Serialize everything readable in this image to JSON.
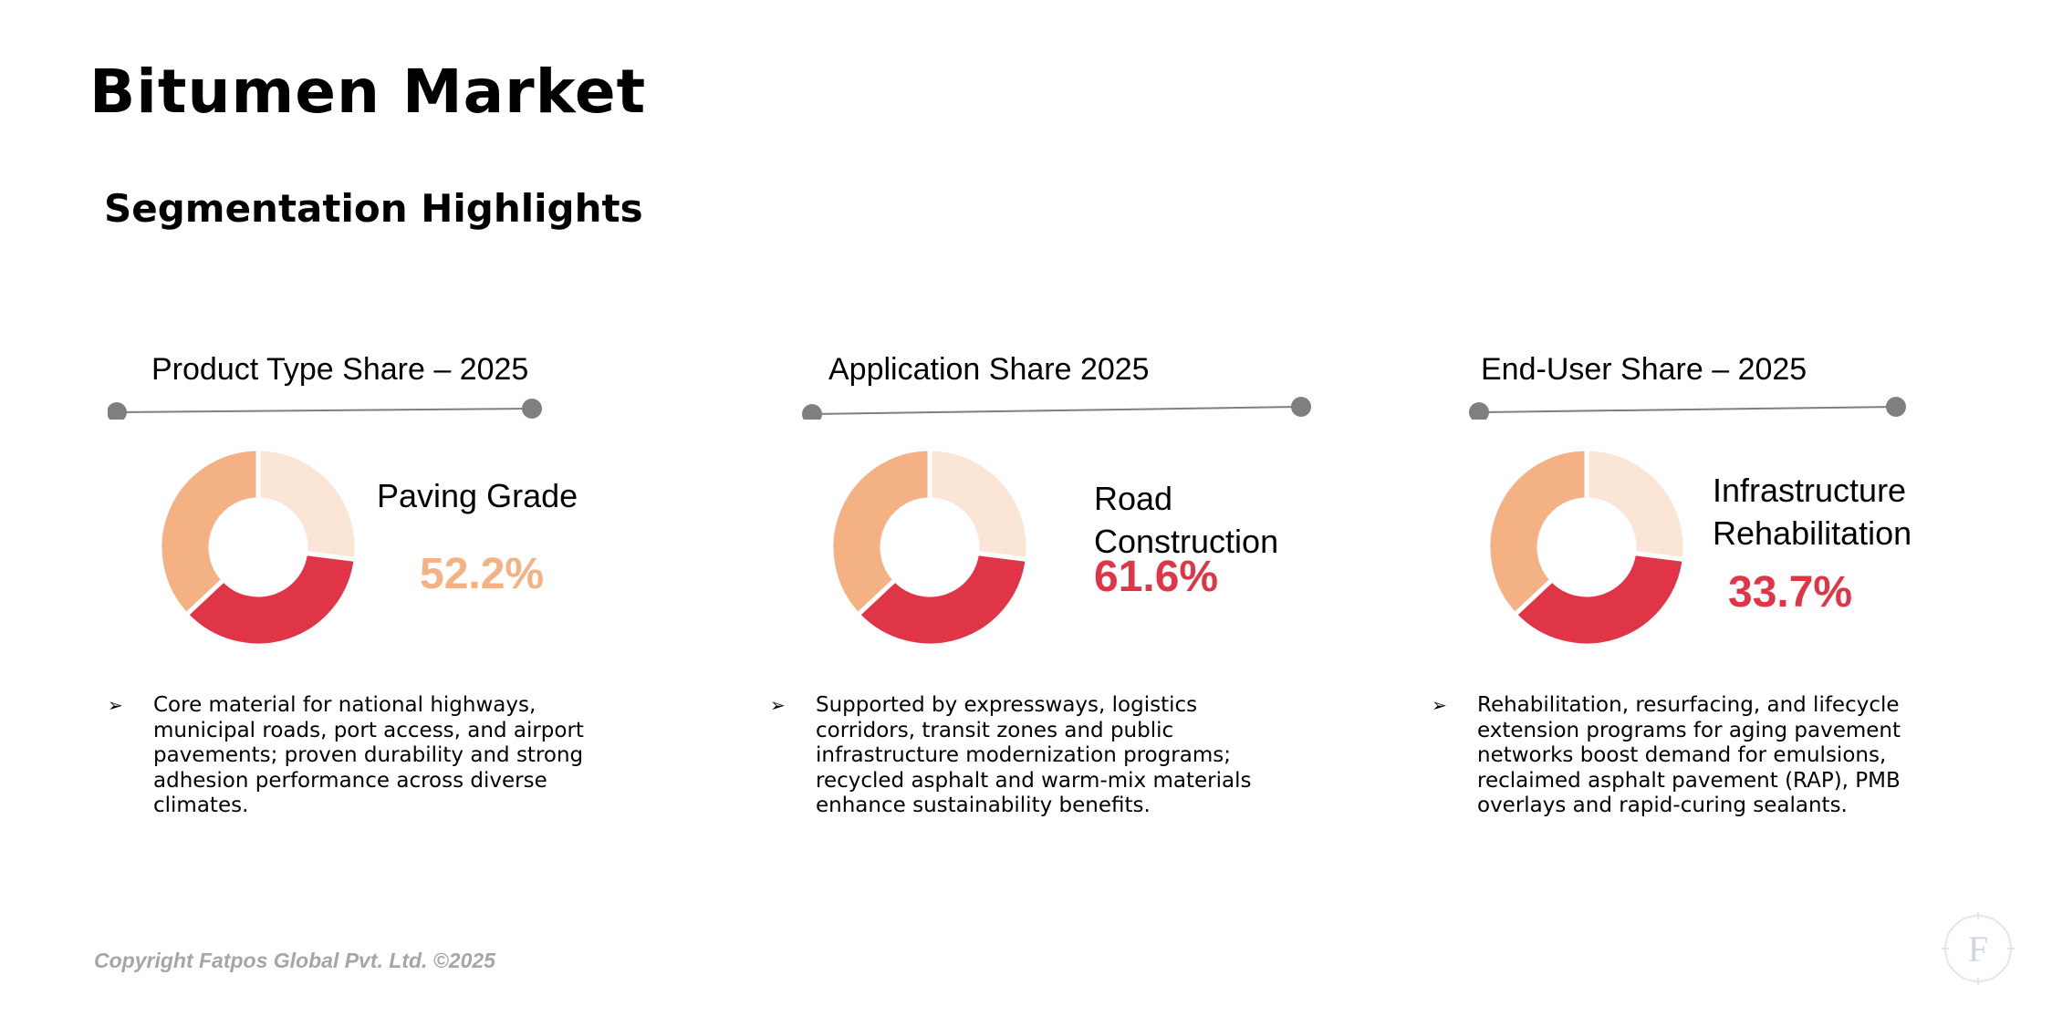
{
  "header": {
    "title": "Bitumen Market",
    "subtitle": "Segmentation Highlights"
  },
  "colors": {
    "highlight_light": "#f4b183",
    "highlight_red": "#e03546",
    "slice_pale": "#fbe5d6",
    "connector": "#7f7f7f",
    "footer_gray": "#a6a6a6"
  },
  "chart_data": [
    {
      "type": "pie",
      "variant": "donut",
      "title": "Product Type Share – 2025",
      "highlight_label": "Paving Grade",
      "highlight_value": "52.2%",
      "slices": [
        {
          "color": "#fbe5d6",
          "value": 27
        },
        {
          "color": "#e03546",
          "value": 36
        },
        {
          "color": "#f4b183",
          "value": 37
        }
      ],
      "bullet": "Core material for national highways, municipal roads, port access, and airport pavements; proven durability and strong adhesion performance across diverse climates."
    },
    {
      "type": "pie",
      "variant": "donut",
      "title": "Application Share 2025",
      "highlight_label": "Road Construction",
      "highlight_value": "61.6%",
      "slices": [
        {
          "color": "#fbe5d6",
          "value": 27
        },
        {
          "color": "#e03546",
          "value": 36
        },
        {
          "color": "#f4b183",
          "value": 37
        }
      ],
      "bullet": "Supported by expressways, logistics corridors, transit zones and public infrastructure modernization programs; recycled asphalt and warm-mix materials enhance sustainability benefits."
    },
    {
      "type": "pie",
      "variant": "donut",
      "title": "End-User Share – 2025",
      "highlight_label": "Infrastructure\nRehabilitation",
      "highlight_value": "33.7%",
      "slices": [
        {
          "color": "#fbe5d6",
          "value": 27
        },
        {
          "color": "#e03546",
          "value": 36
        },
        {
          "color": "#f4b183",
          "value": 37
        }
      ],
      "bullet": "Rehabilitation, resurfacing, and lifecycle extension programs for aging pavement networks boost demand for emulsions, reclaimed asphalt pavement (RAP), PMB overlays and rapid-curing sealants."
    }
  ],
  "bullet_marker": "➢",
  "footer": {
    "copyright": "Copyright Fatpos Global Pvt. Ltd. ©2025",
    "logo_letter": "F"
  }
}
